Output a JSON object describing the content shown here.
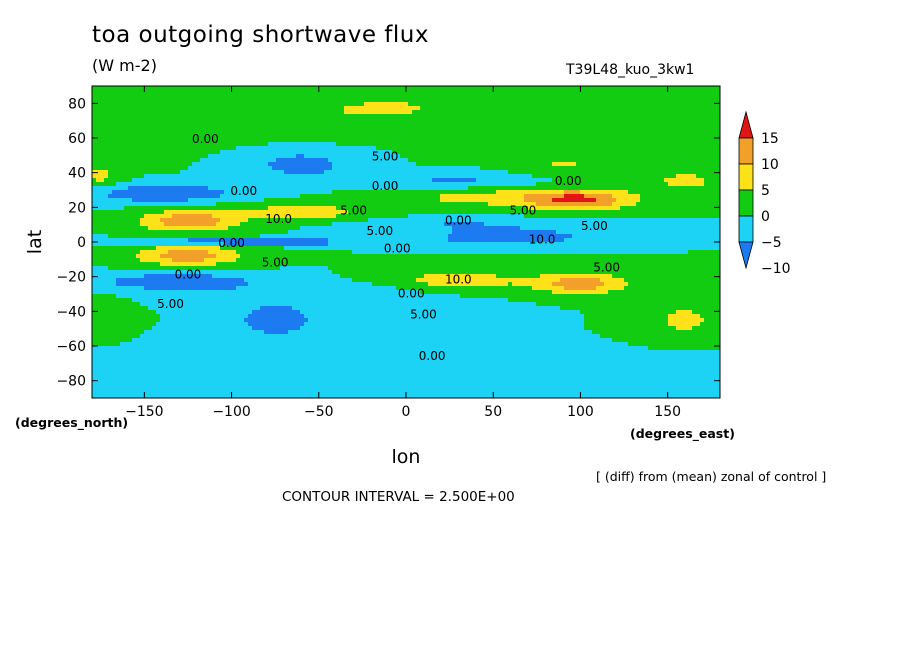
{
  "header": {
    "title": "toa outgoing shortwave flux",
    "units": "(W m-2)",
    "run_label": "T39L48_kuo_3kw1"
  },
  "footer": {
    "note": "[ (diff) from (mean) zonal of control ]",
    "contour_interval": "CONTOUR INTERVAL = 2.500E+00"
  },
  "chart_data": {
    "type": "heatmap",
    "title": "toa outgoing shortwave flux",
    "units": "(W m-2)",
    "xlabel": "lon",
    "ylabel": "lat",
    "x_units": "(degrees_east)",
    "y_units": "(degrees_north)",
    "xlim": [
      -180,
      180
    ],
    "ylim": [
      -90,
      90
    ],
    "xticks": [
      -150,
      -100,
      -50,
      0,
      50,
      100,
      150
    ],
    "yticks": [
      -80,
      -60,
      -40,
      -20,
      0,
      20,
      40,
      60,
      80
    ],
    "colorbar": {
      "levels": [
        -10,
        -5,
        0,
        5,
        10,
        15
      ],
      "colors": [
        "#1c7bf0",
        "#1cd2f5",
        "#12cc12",
        "#fde21a",
        "#f3a02a",
        "#e01616"
      ]
    },
    "contour_labels": [
      {
        "text": "0.00",
        "lon": -115,
        "lat": 57
      },
      {
        "text": "5.00",
        "lon": -12,
        "lat": 47
      },
      {
        "text": "0.00",
        "lon": -12,
        "lat": 30
      },
      {
        "text": "0.00",
        "lon": -93,
        "lat": 27
      },
      {
        "text": "5.00",
        "lon": -30,
        "lat": 16
      },
      {
        "text": "10.0",
        "lon": -73,
        "lat": 11
      },
      {
        "text": "5.00",
        "lon": -15,
        "lat": 4
      },
      {
        "text": "0.00",
        "lon": 30,
        "lat": 10
      },
      {
        "text": "5.00",
        "lon": 67,
        "lat": 16
      },
      {
        "text": "5.00",
        "lon": 108,
        "lat": 7
      },
      {
        "text": "0.00",
        "lon": 93,
        "lat": 33
      },
      {
        "text": "10.0",
        "lon": 78,
        "lat": -1
      },
      {
        "text": "0.00",
        "lon": -100,
        "lat": -3
      },
      {
        "text": "0.00",
        "lon": -5,
        "lat": -6
      },
      {
        "text": "5.00",
        "lon": -75,
        "lat": -14
      },
      {
        "text": "0.00",
        "lon": -125,
        "lat": -21
      },
      {
        "text": "10.0",
        "lon": 30,
        "lat": -24
      },
      {
        "text": "5.00",
        "lon": 115,
        "lat": -17
      },
      {
        "text": "0.00",
        "lon": 3,
        "lat": -32
      },
      {
        "text": "5.00",
        "lon": 10,
        "lat": -44
      },
      {
        "text": "5.00",
        "lon": -135,
        "lat": -38
      },
      {
        "text": "0.00",
        "lon": 15,
        "lat": -68
      }
    ]
  }
}
